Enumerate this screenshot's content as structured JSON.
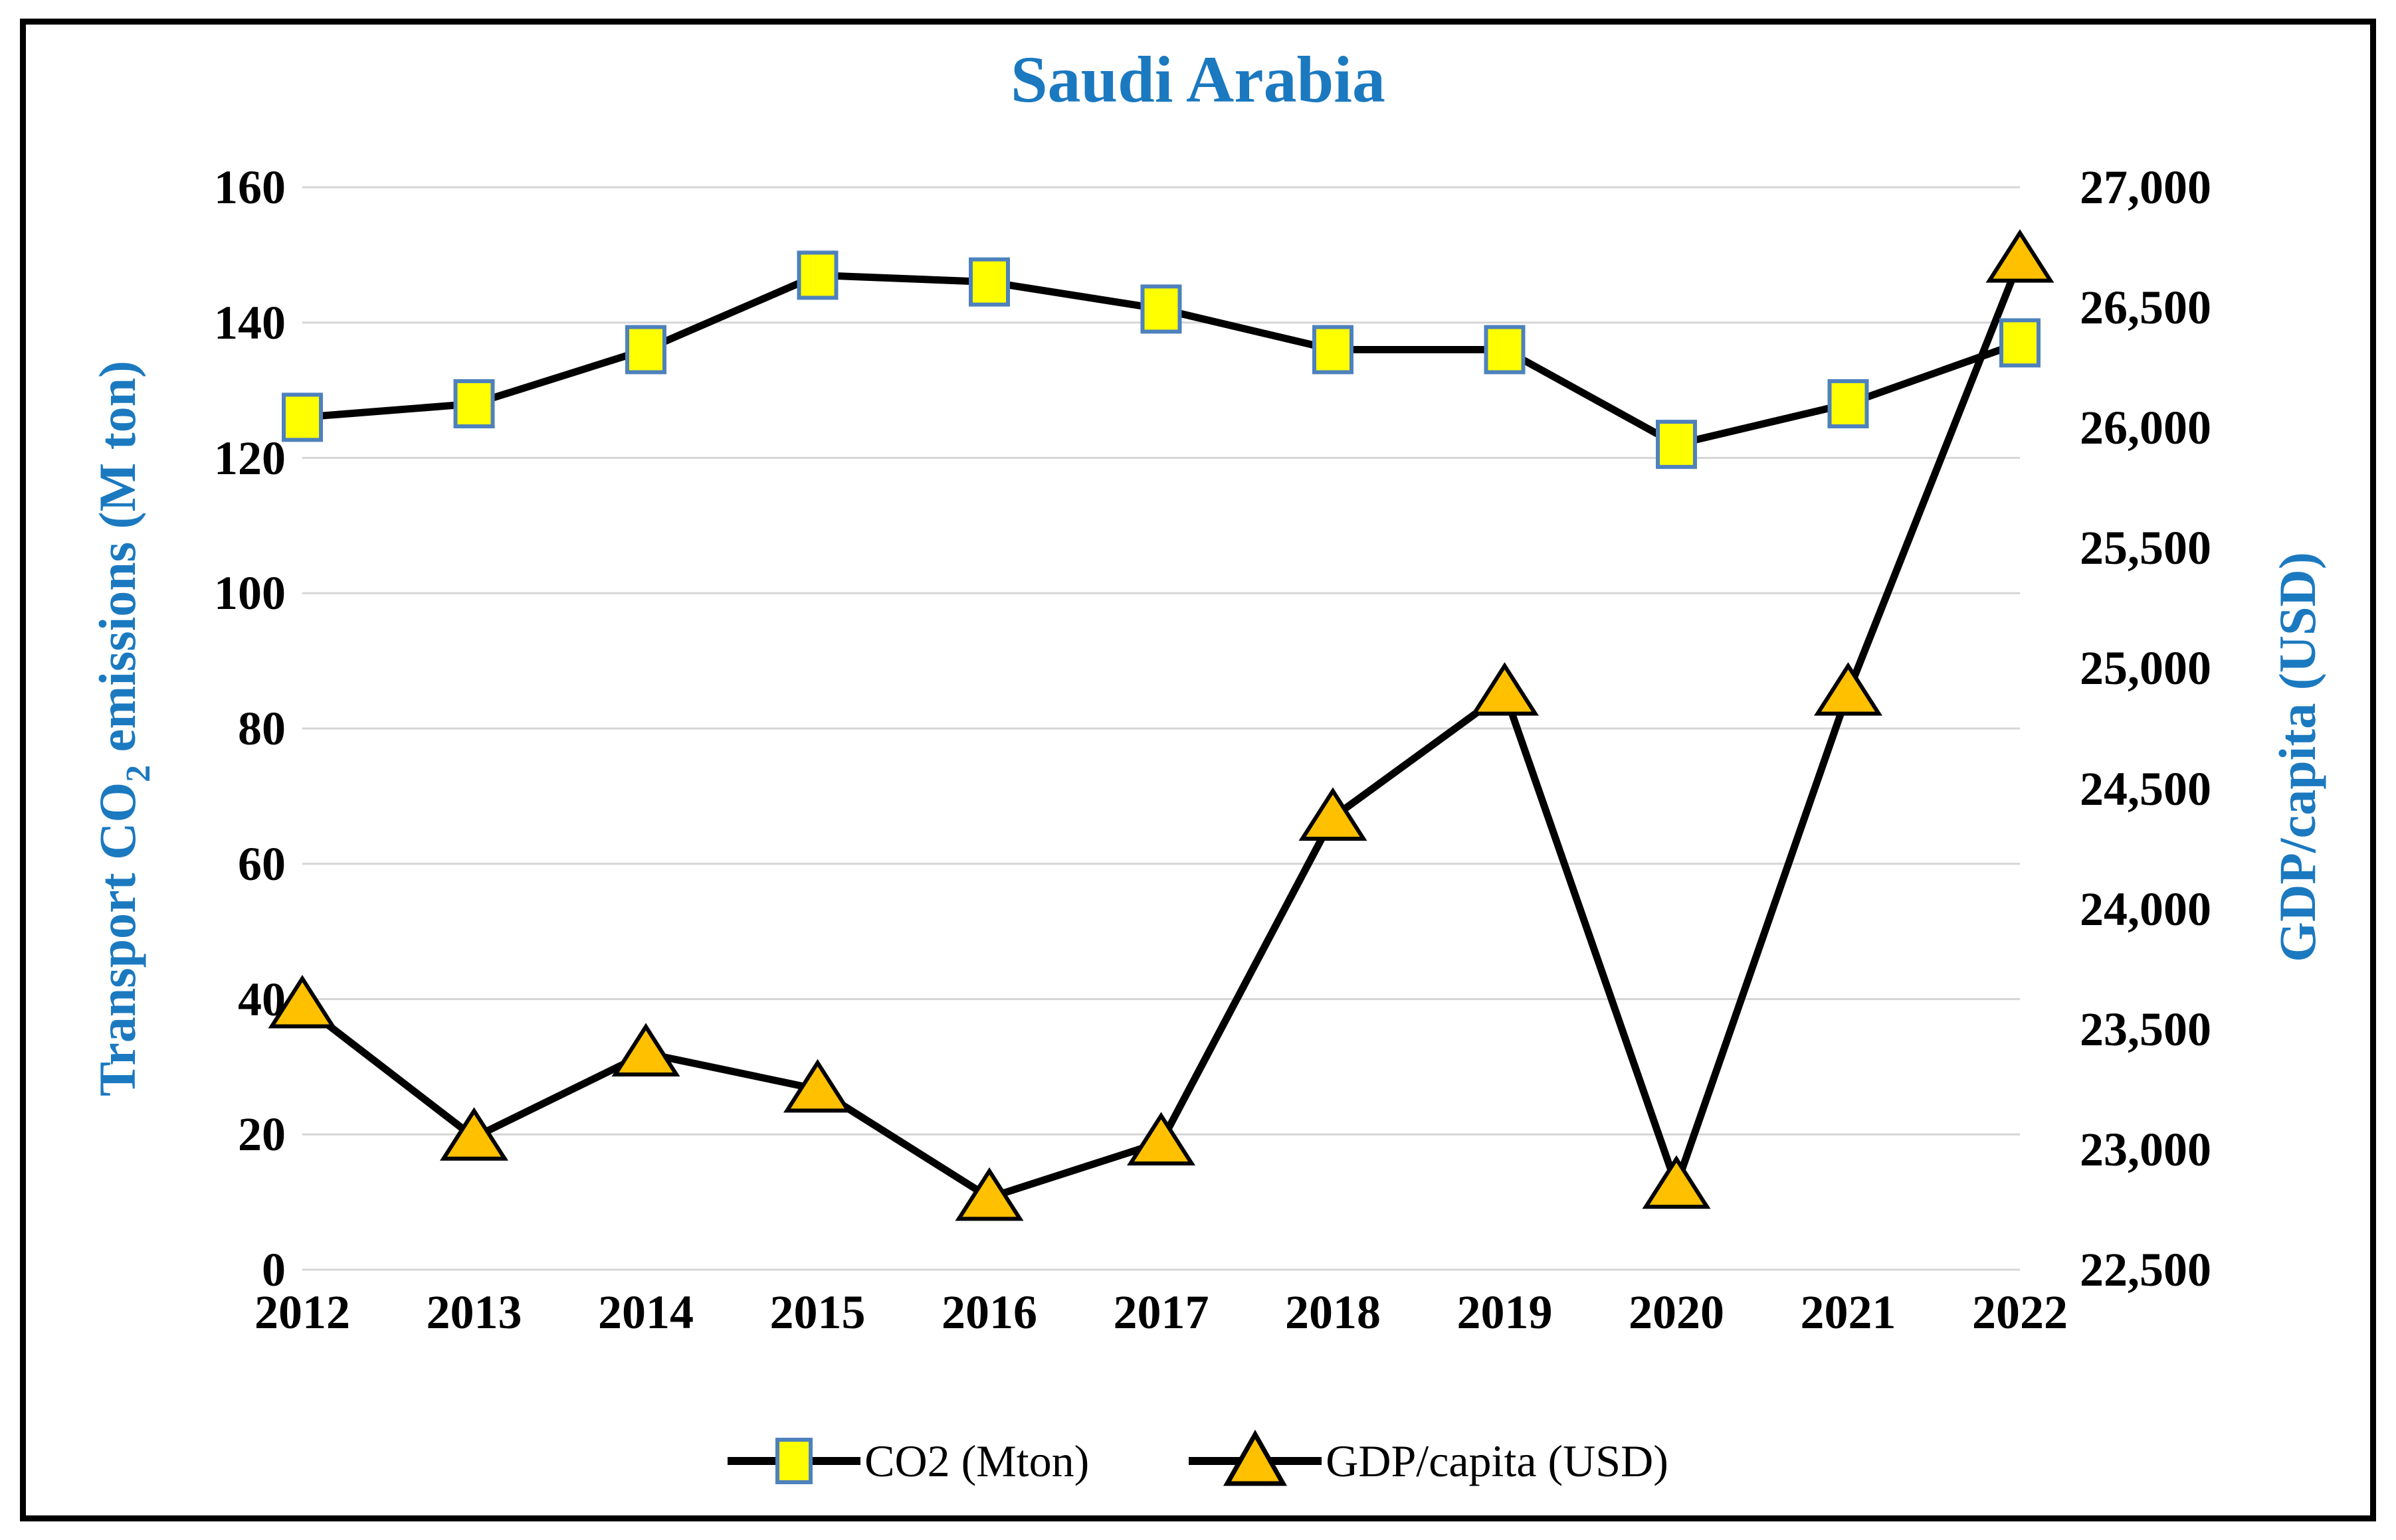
{
  "chart_data": {
    "type": "line",
    "title": "Saudi Arabia",
    "categories": [
      "2012",
      "2013",
      "2014",
      "2015",
      "2016",
      "2017",
      "2018",
      "2019",
      "2020",
      "2021",
      "2022"
    ],
    "series": [
      {
        "name": "CO2 (Mton)",
        "axis": "left",
        "values": [
          126,
          128,
          136,
          147,
          146,
          142,
          136,
          136,
          122,
          128,
          137
        ],
        "marker": "square",
        "marker_fill": "#FFFF00",
        "marker_border": "#4E81BD",
        "line_color": "#000000"
      },
      {
        "name": "GDP/capita (USD)",
        "axis": "right",
        "values": [
          23600,
          23050,
          23400,
          23250,
          22800,
          23030,
          24380,
          24900,
          22850,
          24900,
          26700
        ],
        "marker": "triangle",
        "marker_fill": "#FFC000",
        "marker_border": "#000000",
        "line_color": "#000000"
      }
    ],
    "left_axis": {
      "label_parts": [
        "Transport CO",
        "2",
        " emissions (M ton)"
      ],
      "min": 0,
      "max": 160,
      "tick_labels": [
        "0",
        "20",
        "40",
        "60",
        "80",
        "100",
        "120",
        "140",
        "160"
      ]
    },
    "right_axis": {
      "label": "GDP/capita (USD)",
      "min": 22500,
      "max": 27000,
      "tick_labels": [
        "22,500",
        "23,000",
        "23,500",
        "24,000",
        "24,500",
        "25,000",
        "25,500",
        "26,000",
        "26,500",
        "27,000"
      ]
    },
    "grid": true,
    "gridline_color": "#D6D6D6",
    "legend_position": "bottom",
    "title_color": "#1B79C0"
  }
}
